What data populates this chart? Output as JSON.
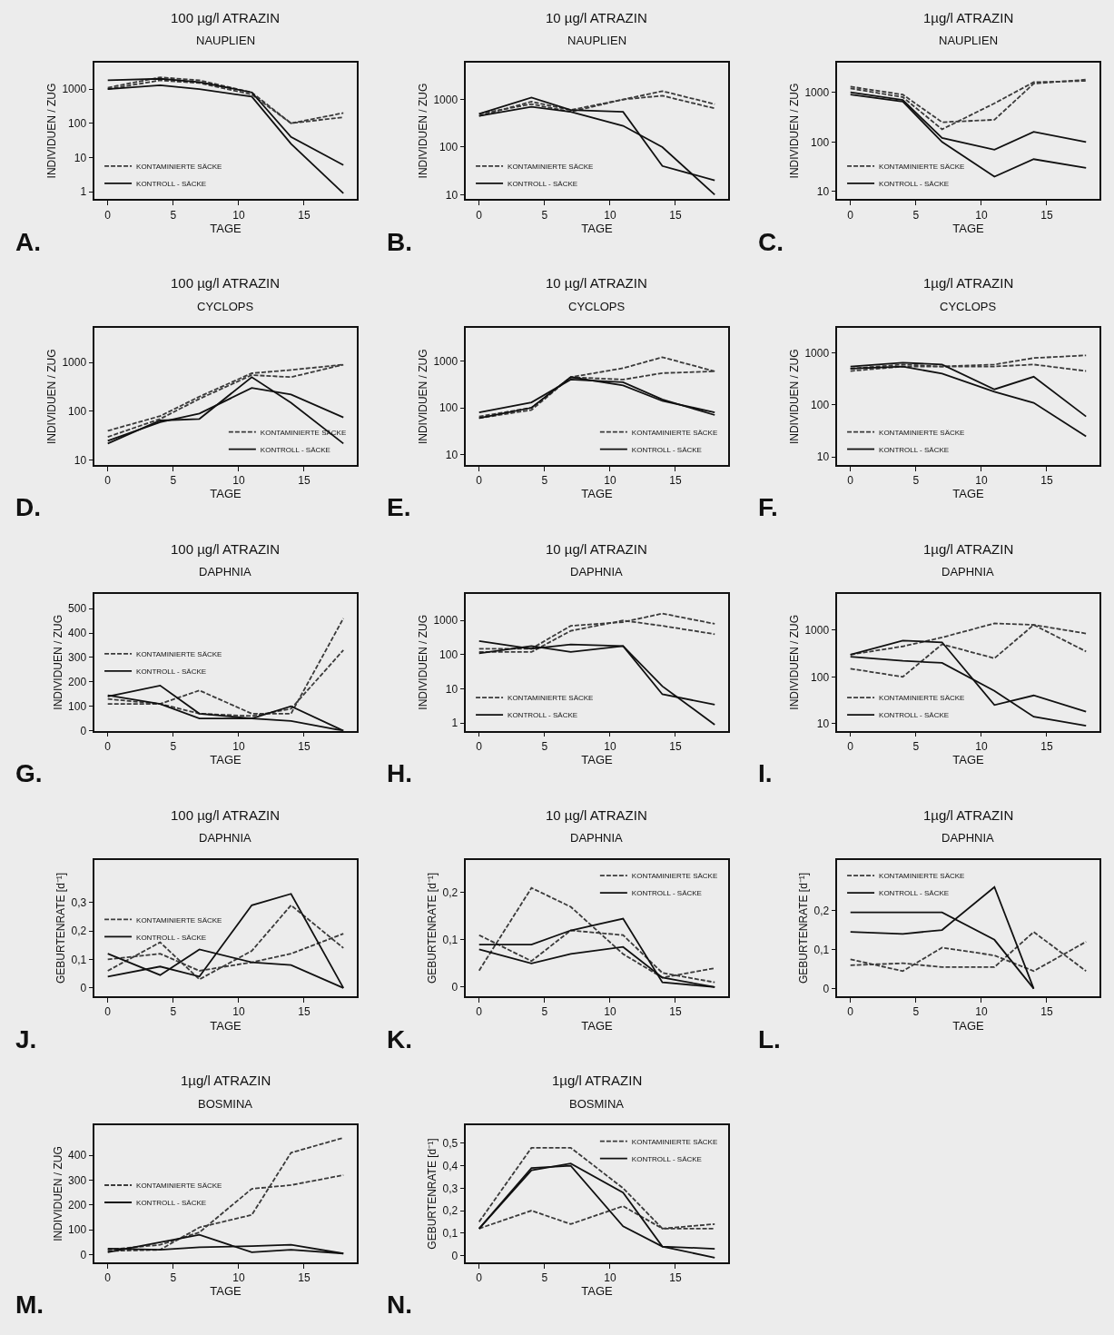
{
  "chart_data": [
    {
      "type": "line",
      "title": "100 µg/l ATRAZIN",
      "subtitle": "NAUPLIEN",
      "xlabel": "TAGE",
      "ylabel": "INDIVIDUEN / ZUG",
      "x": [
        0,
        4,
        7,
        11,
        14,
        18
      ],
      "xlim": [
        -1,
        19
      ],
      "xticks": [
        0,
        5,
        10,
        15
      ],
      "log": true,
      "ylim": [
        0.6,
        6000
      ],
      "yticks": [
        1,
        10,
        100,
        1000
      ],
      "legend": "bottom left",
      "annotations": [
        "A."
      ],
      "series": [
        {
          "name": "KONTAMINIERTE SÄCKE",
          "color": "#3a3a3a",
          "line_style": "dashed",
          "values": [
            1100,
            2200,
            1800,
            800,
            100,
            200
          ]
        },
        {
          "color": "#3a3a3a",
          "line_style": "dashed",
          "values": [
            1000,
            1800,
            1500,
            700,
            100,
            150
          ]
        },
        {
          "name": "KONTROLL - SÄCKE",
          "color": "#111111",
          "line_style": "solid",
          "values": [
            1800,
            2000,
            1600,
            800,
            40,
            6
          ]
        },
        {
          "color": "#111111",
          "line_style": "solid",
          "values": [
            1000,
            1300,
            1000,
            600,
            25,
            0.9
          ]
        }
      ]
    },
    {
      "type": "line",
      "title": "10 µg/l ATRAZIN",
      "subtitle": "NAUPLIEN",
      "xlabel": "TAGE",
      "ylabel": "INDIVIDUEN / ZUG",
      "x": [
        0,
        4,
        7,
        11,
        14,
        18
      ],
      "xlim": [
        -1,
        19
      ],
      "xticks": [
        0,
        5,
        10,
        15
      ],
      "log": true,
      "ylim": [
        8,
        6000
      ],
      "yticks": [
        10,
        100,
        1000
      ],
      "legend": "bottom left",
      "annotations": [
        "B."
      ],
      "series": [
        {
          "name": "KONTAMINIERTE SÄCKE",
          "color": "#3a3a3a",
          "line_style": "dashed",
          "values": [
            450,
            900,
            600,
            1000,
            1500,
            800
          ]
        },
        {
          "color": "#3a3a3a",
          "line_style": "dashed",
          "values": [
            500,
            800,
            550,
            1000,
            1200,
            650
          ]
        },
        {
          "name": "KONTROLL - SÄCKE",
          "color": "#111111",
          "line_style": "solid",
          "values": [
            500,
            1100,
            600,
            550,
            40,
            20
          ]
        },
        {
          "color": "#111111",
          "line_style": "solid",
          "values": [
            450,
            700,
            550,
            280,
            100,
            10
          ]
        }
      ]
    },
    {
      "type": "line",
      "title": "1µg/l ATRAZIN",
      "subtitle": "NAUPLIEN",
      "xlabel": "TAGE",
      "ylabel": "INDIVIDUEN / ZUG",
      "x": [
        0,
        4,
        7,
        11,
        14,
        18
      ],
      "xlim": [
        -1,
        19
      ],
      "xticks": [
        0,
        5,
        10,
        15
      ],
      "log": true,
      "ylim": [
        7,
        4000
      ],
      "yticks": [
        10,
        100,
        1000
      ],
      "legend": "bottom left",
      "annotations": [
        "C."
      ],
      "series": [
        {
          "name": "KONTAMINIERTE SÄCKE",
          "color": "#3a3a3a",
          "line_style": "dashed",
          "values": [
            1300,
            900,
            250,
            280,
            1500,
            1800
          ]
        },
        {
          "color": "#3a3a3a",
          "line_style": "dashed",
          "values": [
            1200,
            800,
            180,
            600,
            1600,
            1700
          ]
        },
        {
          "name": "KONTROLL - SÄCKE",
          "color": "#111111",
          "line_style": "solid",
          "values": [
            1000,
            700,
            120,
            70,
            160,
            100
          ]
        },
        {
          "color": "#111111",
          "line_style": "solid",
          "values": [
            900,
            650,
            100,
            20,
            45,
            30
          ]
        }
      ]
    },
    {
      "type": "line",
      "title": "100 µg/l ATRAZIN",
      "subtitle": "CYCLOPS",
      "xlabel": "TAGE",
      "ylabel": "INDIVIDUEN / ZUG",
      "x": [
        0,
        4,
        7,
        11,
        14,
        18
      ],
      "xlim": [
        -1,
        19
      ],
      "xticks": [
        0,
        5,
        10,
        15
      ],
      "log": true,
      "ylim": [
        8,
        5000
      ],
      "yticks": [
        10,
        100,
        1000
      ],
      "legend": "bottom right",
      "annotations": [
        "D."
      ],
      "series": [
        {
          "name": "KONTAMINIERTE SÄCKE",
          "color": "#3a3a3a",
          "line_style": "dashed",
          "values": [
            40,
            80,
            200,
            600,
            700,
            900
          ]
        },
        {
          "color": "#3a3a3a",
          "line_style": "dashed",
          "values": [
            30,
            70,
            180,
            550,
            500,
            900
          ]
        },
        {
          "name": "KONTROLL - SÄCKE",
          "color": "#111111",
          "line_style": "solid",
          "values": [
            22,
            65,
            70,
            500,
            150,
            22
          ]
        },
        {
          "color": "#111111",
          "line_style": "solid",
          "values": [
            25,
            60,
            90,
            300,
            220,
            75
          ]
        }
      ]
    },
    {
      "type": "line",
      "title": "10 µg/l ATRAZIN",
      "subtitle": "CYCLOPS",
      "xlabel": "TAGE",
      "ylabel": "INDIVIDUEN / ZUG",
      "x": [
        0,
        4,
        7,
        11,
        14,
        18
      ],
      "xlim": [
        -1,
        19
      ],
      "xticks": [
        0,
        5,
        10,
        15
      ],
      "log": true,
      "ylim": [
        6,
        5000
      ],
      "yticks": [
        10,
        100,
        1000
      ],
      "legend": "bottom right",
      "annotations": [
        "E."
      ],
      "series": [
        {
          "name": "KONTAMINIERTE SÄCKE",
          "color": "#3a3a3a",
          "line_style": "dashed",
          "values": [
            60,
            90,
            450,
            700,
            1200,
            600
          ]
        },
        {
          "color": "#3a3a3a",
          "line_style": "dashed",
          "values": [
            65,
            100,
            450,
            400,
            550,
            600
          ]
        },
        {
          "name": "KONTROLL - SÄCKE",
          "color": "#111111",
          "line_style": "solid",
          "values": [
            80,
            130,
            400,
            350,
            150,
            70
          ]
        },
        {
          "color": "#111111",
          "line_style": "solid",
          "values": [
            60,
            100,
            450,
            300,
            140,
            80
          ]
        }
      ]
    },
    {
      "type": "line",
      "title": "1µg/l ATRAZIN",
      "subtitle": "CYCLOPS",
      "xlabel": "TAGE",
      "ylabel": "INDIVIDUEN / ZUG",
      "x": [
        0,
        4,
        7,
        11,
        14,
        18
      ],
      "xlim": [
        -1,
        19
      ],
      "xticks": [
        0,
        5,
        10,
        15
      ],
      "log": true,
      "ylim": [
        7,
        3000
      ],
      "yticks": [
        10,
        100,
        1000
      ],
      "legend": "bottom left",
      "annotations": [
        "F."
      ],
      "series": [
        {
          "name": "KONTAMINIERTE SÄCKE",
          "color": "#3a3a3a",
          "line_style": "dashed",
          "values": [
            450,
            550,
            550,
            600,
            800,
            900
          ]
        },
        {
          "color": "#3a3a3a",
          "line_style": "dashed",
          "values": [
            500,
            600,
            550,
            550,
            600,
            450
          ]
        },
        {
          "name": "KONTROLL - SÄCKE",
          "color": "#111111",
          "line_style": "solid",
          "values": [
            550,
            650,
            600,
            200,
            350,
            60
          ]
        },
        {
          "color": "#111111",
          "line_style": "solid",
          "values": [
            500,
            550,
            400,
            180,
            110,
            25
          ]
        }
      ]
    },
    {
      "type": "line",
      "title": "100 µg/l ATRAZIN",
      "subtitle": "DAPHNIA",
      "xlabel": "TAGE",
      "ylabel": "INDIVIDUEN / ZUG",
      "x": [
        0,
        4,
        7,
        11,
        14,
        18
      ],
      "xlim": [
        -1,
        19
      ],
      "xticks": [
        0,
        5,
        10,
        15
      ],
      "ylim": [
        0,
        560
      ],
      "yticks": [
        0,
        100,
        200,
        300,
        400,
        500
      ],
      "legend": "left",
      "annotations": [
        "G."
      ],
      "series": [
        {
          "name": "KONTAMINIERTE SÄCKE",
          "color": "#3a3a3a",
          "line_style": "dashed",
          "values": [
            110,
            110,
            165,
            70,
            70,
            460
          ]
        },
        {
          "color": "#3a3a3a",
          "line_style": "dashed",
          "values": [
            130,
            110,
            70,
            60,
            90,
            330
          ]
        },
        {
          "name": "KONTROLL - SÄCKE",
          "color": "#111111",
          "line_style": "solid",
          "values": [
            140,
            185,
            70,
            50,
            100,
            0
          ]
        },
        {
          "color": "#111111",
          "line_style": "solid",
          "values": [
            145,
            110,
            50,
            50,
            40,
            0
          ]
        }
      ]
    },
    {
      "type": "line",
      "title": "10 µg/l ATRAZIN",
      "subtitle": "DAPHNIA",
      "xlabel": "TAGE",
      "ylabel": "INDIVIDUEN / ZUG",
      "x": [
        0,
        4,
        7,
        11,
        14,
        18
      ],
      "xlim": [
        -1,
        19
      ],
      "xticks": [
        0,
        5,
        10,
        15
      ],
      "log": true,
      "ylim": [
        0.6,
        6000
      ],
      "yticks": [
        1,
        10,
        100,
        1000
      ],
      "legend": "bottom left",
      "annotations": [
        "H."
      ],
      "series": [
        {
          "name": "KONTAMINIERTE SÄCKE",
          "color": "#3a3a3a",
          "line_style": "dashed",
          "values": [
            150,
            150,
            700,
            900,
            1600,
            800
          ]
        },
        {
          "color": "#3a3a3a",
          "line_style": "dashed",
          "values": [
            120,
            120,
            500,
            1000,
            700,
            400
          ]
        },
        {
          "name": "KONTROLL - SÄCKE",
          "color": "#111111",
          "line_style": "solid",
          "values": [
            250,
            150,
            200,
            180,
            7,
            3.5
          ]
        },
        {
          "color": "#111111",
          "line_style": "solid",
          "values": [
            110,
            180,
            120,
            180,
            12,
            0.9
          ]
        }
      ]
    },
    {
      "type": "line",
      "title": "1µg/l ATRAZIN",
      "subtitle": "DAPHNIA",
      "xlabel": "TAGE",
      "ylabel": "INDIVIDUEN / ZUG",
      "x": [
        0,
        4,
        7,
        11,
        14,
        18
      ],
      "xlim": [
        -1,
        19
      ],
      "xticks": [
        0,
        5,
        10,
        15
      ],
      "log": true,
      "ylim": [
        7,
        6000
      ],
      "yticks": [
        10,
        100,
        1000
      ],
      "legend": "bottom left",
      "annotations": [
        "I."
      ],
      "series": [
        {
          "name": "KONTAMINIERTE SÄCKE",
          "color": "#3a3a3a",
          "line_style": "dashed",
          "values": [
            300,
            450,
            700,
            1400,
            1300,
            850
          ]
        },
        {
          "color": "#3a3a3a",
          "line_style": "dashed",
          "values": [
            150,
            100,
            500,
            250,
            1300,
            350
          ]
        },
        {
          "name": "KONTROLL - SÄCKE",
          "color": "#111111",
          "line_style": "solid",
          "values": [
            300,
            600,
            550,
            25,
            40,
            18
          ]
        },
        {
          "color": "#111111",
          "line_style": "solid",
          "values": [
            270,
            220,
            200,
            50,
            14,
            9
          ]
        }
      ]
    },
    {
      "type": "line",
      "title": "100 µg/l ATRAZIN",
      "subtitle": "DAPHNIA",
      "xlabel": "TAGE",
      "ylabel": "GEBURTENRATE [d⁻¹]",
      "x": [
        0,
        4,
        7,
        11,
        14,
        18
      ],
      "xlim": [
        -1,
        19
      ],
      "xticks": [
        0,
        5,
        10,
        15
      ],
      "ylim": [
        -0.03,
        0.45
      ],
      "yticks": [
        0,
        {
          "value": 0.1,
          "label": "0,1"
        },
        {
          "value": 0.2,
          "label": "0,2"
        },
        {
          "value": 0.3,
          "label": "0,3"
        }
      ],
      "legend": "left",
      "annotations": [
        "J."
      ],
      "series": [
        {
          "name": "KONTAMINIERTE SÄCKE",
          "color": "#3a3a3a",
          "line_style": "dashed",
          "values": [
            0.06,
            0.16,
            0.03,
            0.13,
            0.29,
            0.14
          ]
        },
        {
          "color": "#3a3a3a",
          "line_style": "dashed",
          "values": [
            0.1,
            0.12,
            0.06,
            0.09,
            0.12,
            0.19
          ]
        },
        {
          "name": "KONTROLL - SÄCKE",
          "color": "#111111",
          "line_style": "solid",
          "values": [
            0.04,
            0.075,
            0.04,
            0.29,
            0.33,
            0
          ]
        },
        {
          "color": "#111111",
          "line_style": "solid",
          "values": [
            0.12,
            0.045,
            0.135,
            0.09,
            0.08,
            0
          ]
        }
      ]
    },
    {
      "type": "line",
      "title": "10 µg/l ATRAZIN",
      "subtitle": "DAPHNIA",
      "xlabel": "TAGE",
      "ylabel": "GEBURTENRATE [d⁻¹]",
      "x": [
        0,
        4,
        7,
        11,
        14,
        18
      ],
      "xlim": [
        -1,
        19
      ],
      "xticks": [
        0,
        5,
        10,
        15
      ],
      "ylim": [
        -0.02,
        0.27
      ],
      "yticks": [
        0,
        {
          "value": 0.1,
          "label": "0,1"
        },
        {
          "value": 0.2,
          "label": "0,2"
        }
      ],
      "legend": "top right",
      "annotations": [
        "K."
      ],
      "series": [
        {
          "name": "KONTAMINIERTE SÄCKE",
          "color": "#3a3a3a",
          "line_style": "dashed",
          "values": [
            0.035,
            0.21,
            0.17,
            0.07,
            0.02,
            0.04
          ]
        },
        {
          "color": "#3a3a3a",
          "line_style": "dashed",
          "values": [
            0.11,
            0.055,
            0.12,
            0.11,
            0.03,
            0.01
          ]
        },
        {
          "name": "KONTROLL - SÄCKE",
          "color": "#111111",
          "line_style": "solid",
          "values": [
            0.09,
            0.09,
            0.12,
            0.145,
            0.01,
            0
          ]
        },
        {
          "color": "#111111",
          "line_style": "solid",
          "values": [
            0.08,
            0.05,
            0.07,
            0.085,
            0.02,
            0
          ]
        }
      ]
    },
    {
      "type": "line",
      "title": "1µg/l ATRAZIN",
      "subtitle": "DAPHNIA",
      "xlabel": "TAGE",
      "ylabel": "GEBURTENRATE [d⁻¹]",
      "x": [
        0,
        4,
        7,
        11,
        14,
        18
      ],
      "xlim": [
        -1,
        19
      ],
      "xticks": [
        0,
        5,
        10,
        15
      ],
      "ylim": [
        -0.02,
        0.33
      ],
      "yticks": [
        0,
        {
          "value": 0.1,
          "label": "0,1"
        },
        {
          "value": 0.2,
          "label": "0,2"
        }
      ],
      "legend": "top left",
      "annotations": [
        "L."
      ],
      "series": [
        {
          "name": "KONTAMINIERTE SÄCKE",
          "color": "#3a3a3a",
          "line_style": "dashed",
          "values": [
            0.075,
            0.045,
            0.105,
            0.085,
            0.045,
            0.12
          ]
        },
        {
          "color": "#3a3a3a",
          "line_style": "dashed",
          "values": [
            0.06,
            0.065,
            0.055,
            0.055,
            0.145,
            0.045
          ]
        },
        {
          "name": "KONTROLL - SÄCKE",
          "color": "#111111",
          "line_style": "solid",
          "values": [
            0.195,
            0.195,
            0.195,
            0.125,
            0,
            null
          ]
        },
        {
          "color": "#111111",
          "line_style": "solid",
          "values": [
            0.145,
            0.14,
            0.15,
            0.26,
            0,
            null
          ]
        }
      ]
    },
    {
      "type": "line",
      "title": "1µg/l ATRAZIN",
      "subtitle": "BOSMINA",
      "xlabel": "TAGE",
      "ylabel": "INDIVIDUEN / ZUG",
      "x": [
        0,
        4,
        7,
        11,
        14,
        18
      ],
      "xlim": [
        -1,
        19
      ],
      "xticks": [
        0,
        5,
        10,
        15
      ],
      "ylim": [
        -30,
        520
      ],
      "yticks": [
        0,
        100,
        200,
        300,
        400
      ],
      "legend": "left",
      "annotations": [
        "M."
      ],
      "series": [
        {
          "name": "KONTAMINIERTE SÄCKE",
          "color": "#3a3a3a",
          "line_style": "dashed",
          "values": [
            15,
            20,
            110,
            160,
            410,
            470
          ]
        },
        {
          "color": "#3a3a3a",
          "line_style": "dashed",
          "values": [
            20,
            40,
            90,
            265,
            280,
            320
          ]
        },
        {
          "name": "KONTROLL - SÄCKE",
          "color": "#111111",
          "line_style": "solid",
          "values": [
            10,
            50,
            80,
            10,
            20,
            5
          ]
        },
        {
          "color": "#111111",
          "line_style": "solid",
          "values": [
            25,
            20,
            30,
            35,
            40,
            5
          ]
        }
      ]
    },
    {
      "type": "line",
      "title": "1µg/l ATRAZIN",
      "subtitle": "BOSMINA",
      "xlabel": "TAGE",
      "ylabel": "GEBURTENRATE [d⁻¹]",
      "x": [
        0,
        4,
        7,
        11,
        14,
        18
      ],
      "xlim": [
        -1,
        19
      ],
      "xticks": [
        0,
        5,
        10,
        15
      ],
      "ylim": [
        -0.03,
        0.58
      ],
      "yticks": [
        0,
        {
          "value": 0.1,
          "label": "0,1"
        },
        {
          "value": 0.2,
          "label": "0,2"
        },
        {
          "value": 0.3,
          "label": "0,3"
        },
        {
          "value": 0.4,
          "label": "0,4"
        },
        {
          "value": 0.5,
          "label": "0,5"
        }
      ],
      "legend": "top right",
      "annotations": [
        "N."
      ],
      "series": [
        {
          "name": "KONTAMINIERTE SÄCKE",
          "color": "#3a3a3a",
          "line_style": "dashed",
          "values": [
            0.15,
            0.48,
            0.48,
            0.3,
            0.12,
            0.12
          ]
        },
        {
          "color": "#3a3a3a",
          "line_style": "dashed",
          "values": [
            0.12,
            0.2,
            0.14,
            0.22,
            0.12,
            0.14
          ]
        },
        {
          "name": "KONTROLL - SÄCKE",
          "color": "#111111",
          "line_style": "solid",
          "values": [
            0.12,
            0.38,
            0.41,
            0.28,
            0.04,
            0.03
          ]
        },
        {
          "color": "#111111",
          "line_style": "solid",
          "values": [
            0.12,
            0.39,
            0.4,
            0.13,
            0.04,
            -0.01
          ]
        }
      ]
    }
  ]
}
